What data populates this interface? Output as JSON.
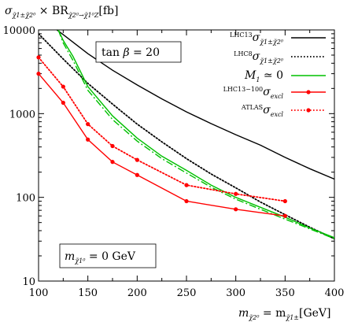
{
  "chart_data": {
    "type": "line",
    "ylabel": "σ χ̃1± χ̃2⁰ × BR χ̃2⁰→χ̃1⁰ Z [fb]",
    "ylabel_parts": {
      "sigma": "σ",
      "sigma_sub": "χ̃1±χ̃2⁰",
      "times_br": " × BR",
      "br_sub": "χ̃2⁰→χ̃1⁰Z",
      "unit": "[fb]"
    },
    "xlabel": "m χ̃2⁰ = m χ̃1± [GeV]",
    "xlabel_parts": {
      "m1": "m",
      "m1_sub": "χ̃2⁰",
      "eq": " = m",
      "m2_sub": "χ̃1±",
      "unit": "[GeV]"
    },
    "x_scale": "linear",
    "y_scale": "log",
    "xlim": [
      100,
      400
    ],
    "ylim": [
      10,
      10000
    ],
    "x_ticks": [
      "100",
      "150",
      "200",
      "250",
      "300",
      "350",
      "400"
    ],
    "y_ticks": [
      "10",
      "100",
      "1000",
      "10000"
    ],
    "annotations": {
      "tanbeta": "tan β = 20",
      "mass": "m χ̃1⁰ = 0 GeV",
      "tanbeta_parts": {
        "tan": "tan ",
        "beta": "β",
        "rest": " = 20"
      },
      "mass_parts": {
        "m": "m",
        "m_sub": "χ̃1⁰",
        "rest": " = 0 GeV"
      }
    },
    "legend_position": "top-right",
    "series": [
      {
        "name": "LHC13 σ χ̃1±χ̃2⁰",
        "legend_tag": "LHC13",
        "legend_sym": "σ",
        "legend_sub": "χ̃1±χ̃2⁰",
        "color": "#000000",
        "style": "solid",
        "x": [
          100,
          125,
          150,
          175,
          200,
          225,
          250,
          275,
          300,
          325,
          350,
          375,
          400
        ],
        "y": [
          14500,
          8800,
          5200,
          3300,
          2200,
          1500,
          1050,
          760,
          560,
          420,
          300,
          220,
          165
        ]
      },
      {
        "name": "LHC8 σ χ̃1±χ̃2⁰",
        "legend_tag": "LHC8",
        "legend_sym": "σ",
        "legend_sub": "χ̃1±χ̃2⁰",
        "color": "#000000",
        "style": "dotted",
        "x": [
          100,
          125,
          150,
          175,
          200,
          225,
          250,
          275,
          300,
          325,
          350,
          375,
          400
        ],
        "y": [
          9000,
          4500,
          2300,
          1300,
          750,
          460,
          290,
          190,
          130,
          88,
          62,
          44,
          32
        ]
      },
      {
        "name": "M1 ≃ 0",
        "legend_sym": "M",
        "legend_sub": "1",
        "legend_rest": " ≃ 0",
        "color": "#00c000",
        "style": "solid",
        "x": [
          120,
          125,
          135,
          150,
          175,
          200,
          225,
          250,
          275,
          300,
          325,
          350,
          375,
          400
        ],
        "y": [
          10000,
          7500,
          4800,
          2100,
          940,
          510,
          310,
          210,
          140,
          100,
          76,
          58,
          43,
          33
        ]
      },
      {
        "name": "M1 ≃ 0 (band)",
        "color": "#00c000",
        "style": "dashdot",
        "x": [
          120,
          125,
          135,
          150,
          175,
          200,
          225,
          250,
          275,
          300,
          325,
          350,
          375,
          400
        ],
        "y": [
          10000,
          7000,
          4300,
          1900,
          850,
          470,
          290,
          195,
          132,
          95,
          72,
          55,
          42,
          32
        ]
      },
      {
        "name": "LHC13−100 σ excl",
        "legend_tag": "LHC13−100",
        "legend_sym": "σ",
        "legend_sub": "excl",
        "color": "#ff0000",
        "style": "solid",
        "markers": true,
        "x": [
          100,
          125,
          150,
          175,
          200,
          250,
          300,
          350
        ],
        "y": [
          3000,
          1350,
          490,
          265,
          185,
          90,
          72,
          60
        ]
      },
      {
        "name": "ATLAS σ excl",
        "legend_tag": "ATLAS",
        "legend_sym": "σ",
        "legend_sub": "excl",
        "color": "#ff0000",
        "style": "dotted",
        "markers": true,
        "x": [
          100,
          125,
          150,
          175,
          200,
          250,
          300,
          350
        ],
        "y": [
          4700,
          2100,
          750,
          410,
          280,
          140,
          110,
          90
        ]
      }
    ]
  }
}
